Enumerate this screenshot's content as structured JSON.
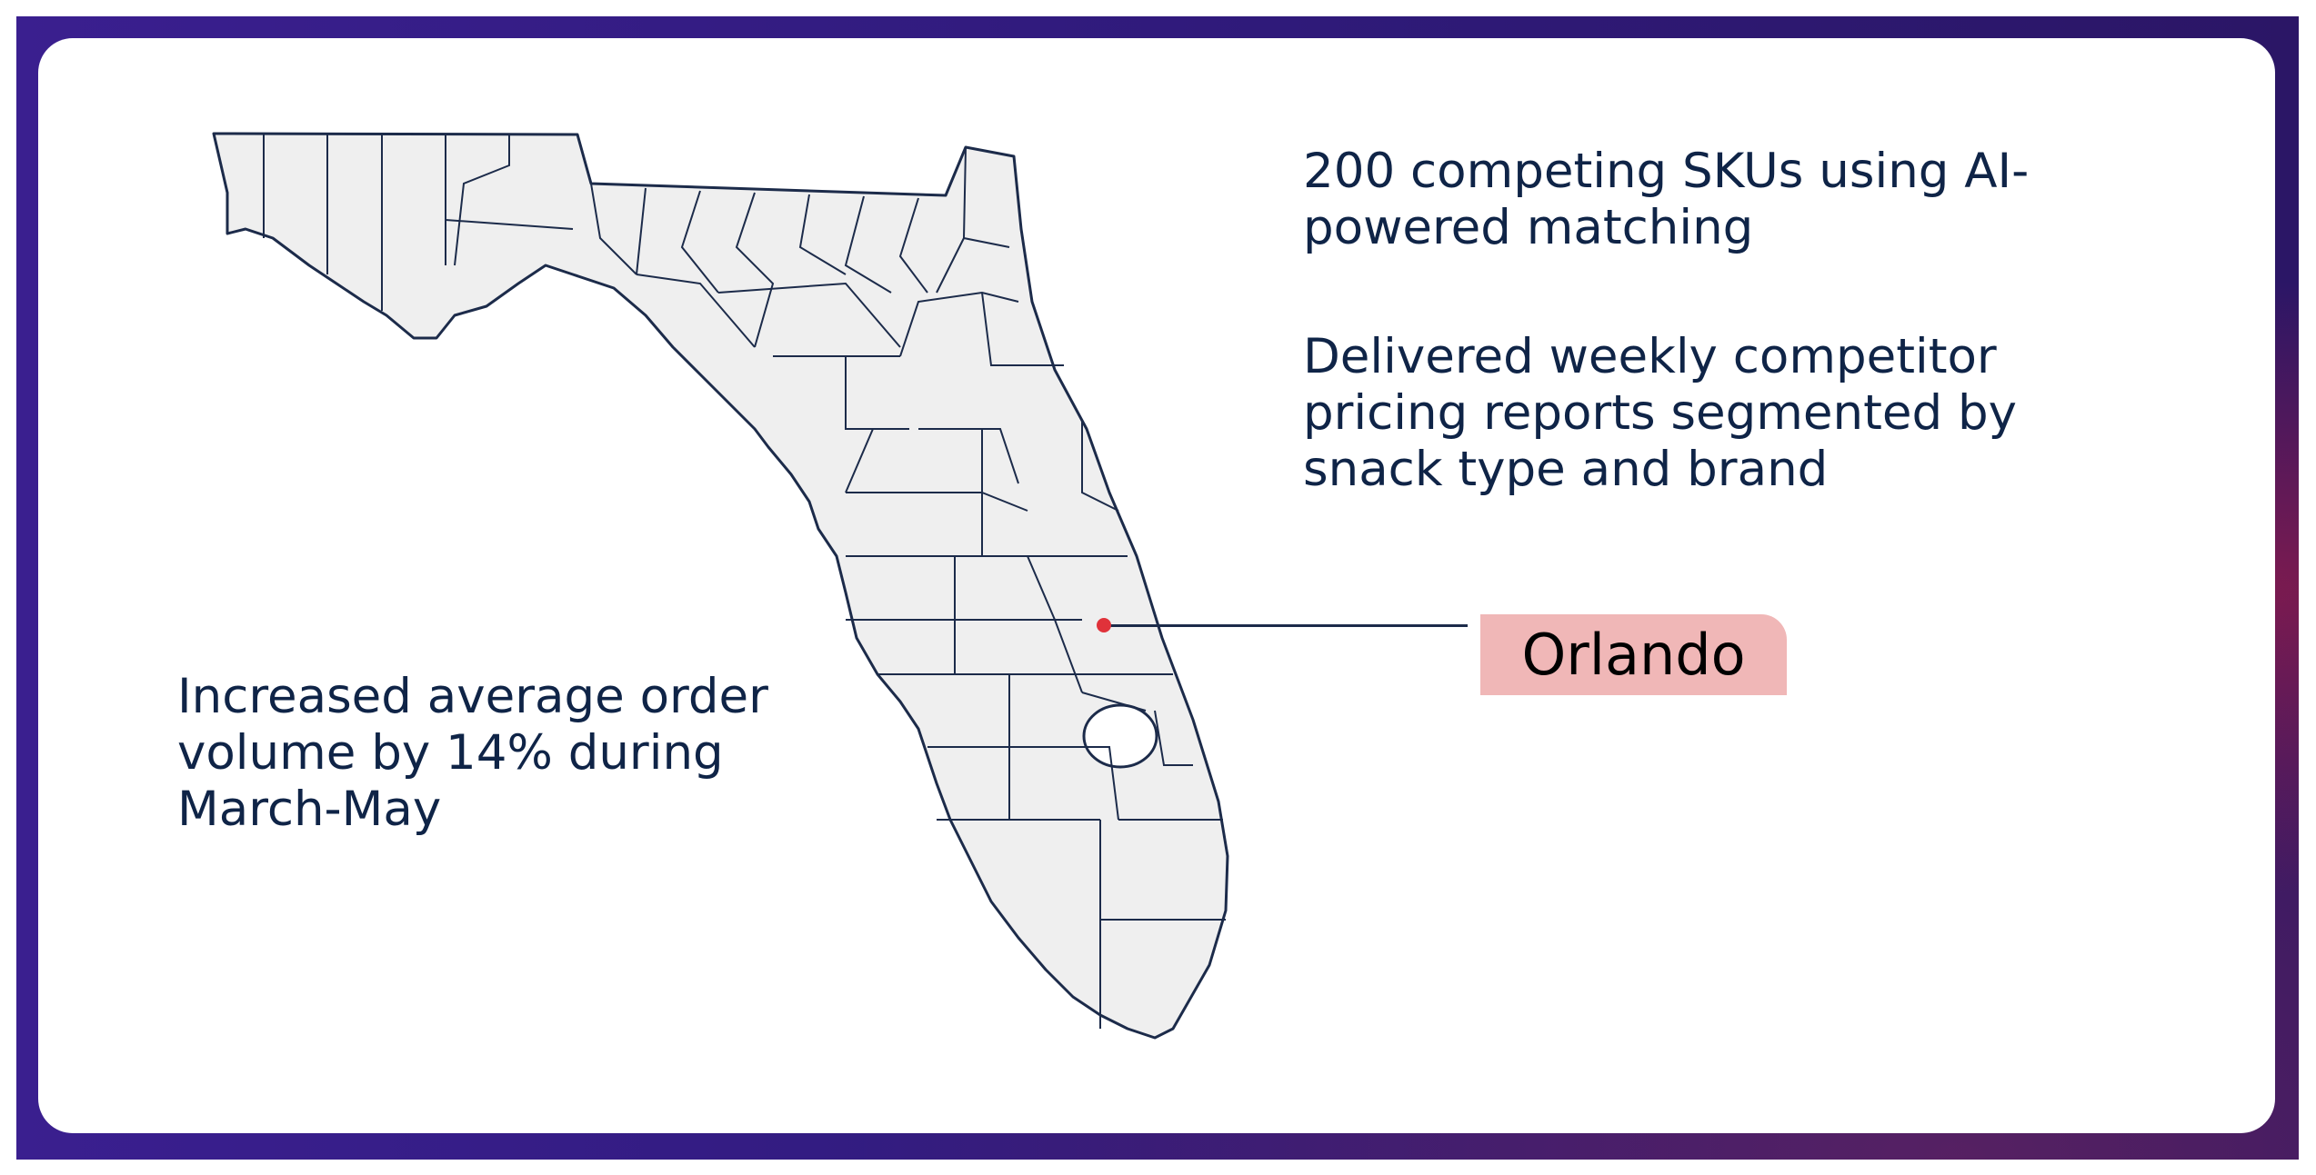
{
  "stats": {
    "skus": "200 competing SKUs using AI-powered matching",
    "reports": "Delivered weekly competitor pricing reports segmented by snack type and brand",
    "volume": "Increased average order volume by 14% during March-May"
  },
  "map": {
    "marker_city": "Orlando",
    "marker_color": "#e0323a",
    "label_bg_color": "#f0b7b7",
    "land_color": "#efefef",
    "border_color": "#1c2b4a"
  },
  "colors": {
    "text": "#0f2447",
    "frame": "#2f1a7a"
  }
}
